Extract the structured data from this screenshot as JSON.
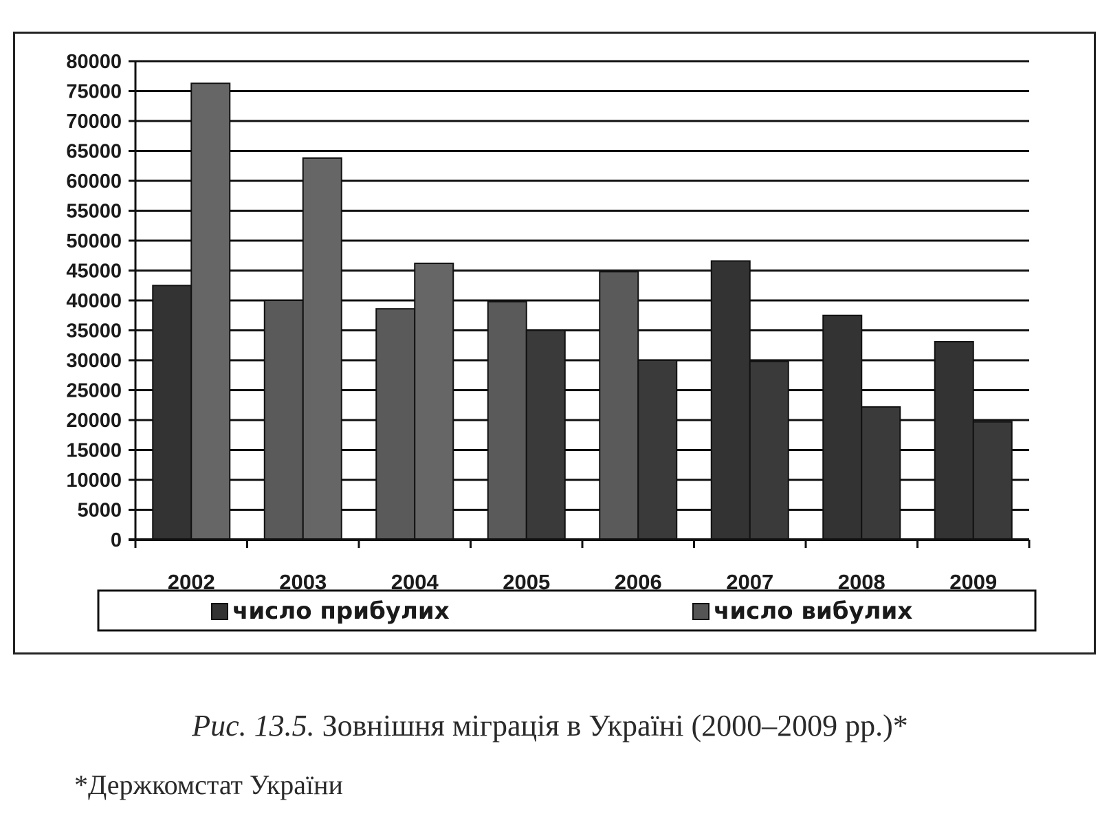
{
  "caption": {
    "fig_label": "Рис. 13.5.",
    "text": " Зовнішня міграція в Україні (2000–2009 рр.)*"
  },
  "source": "*Держкомстат України",
  "chart_data": {
    "type": "bar",
    "categories": [
      "2002",
      "2003",
      "2004",
      "2005",
      "2006",
      "2007",
      "2008",
      "2009"
    ],
    "series": [
      {
        "name": "число прибулих",
        "values": [
          42500,
          40000,
          38600,
          39800,
          44800,
          46600,
          37500,
          33100
        ]
      },
      {
        "name": "число вибулих",
        "values": [
          76300,
          63800,
          46200,
          35000,
          30000,
          29800,
          22200,
          19700
        ]
      }
    ],
    "yticks": [
      "0",
      "5000",
      "10000",
      "15000",
      "20000",
      "25000",
      "30000",
      "35000",
      "40000",
      "45000",
      "50000",
      "55000",
      "60000",
      "65000",
      "70000",
      "75000",
      "80000"
    ],
    "ylim": [
      0,
      80000
    ],
    "grid": true,
    "legend_position": "bottom",
    "colors": {
      "bar_light": "#6b6b6b",
      "bar_dark": "#2a2a2a",
      "grid": "#111111"
    }
  }
}
